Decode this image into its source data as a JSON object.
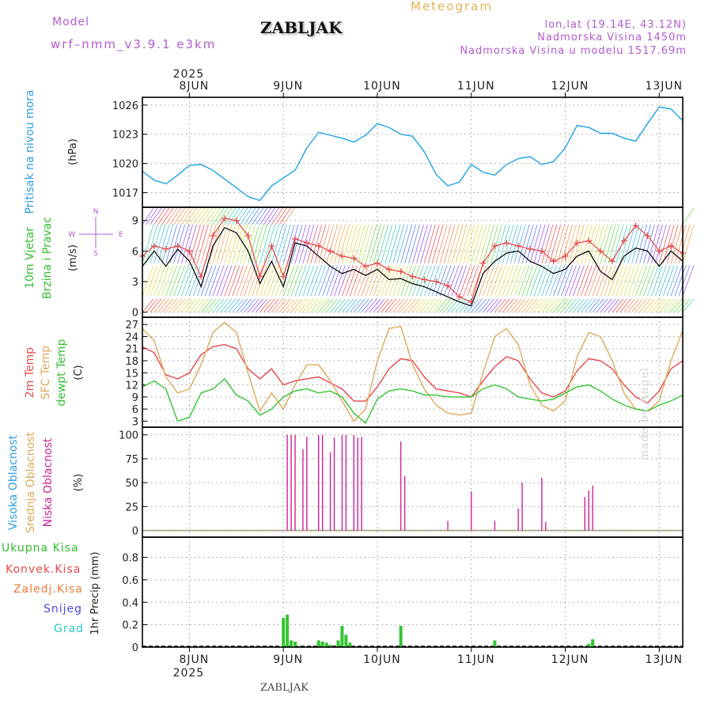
{
  "header": {
    "model_label": "Model",
    "model_value": "wrf–nmm_v3.9.1  e3km",
    "location_title": "ZABLJAK",
    "meteogram_label": "Meteogram",
    "coords": "lon,lat (19.14E, 43.12N)",
    "altitude": "Nadmorska Visina 1450m",
    "model_altitude": "Nadmorska Visina u modelu 1517.69m",
    "footer_location": "ZABLJAK",
    "watermark": "made by Angel"
  },
  "colors": {
    "pressure": "#1ea3e6",
    "wind_speed": "#000000",
    "gust": "#e8474a",
    "temp2m": "#e8474a",
    "sfc_temp": "#e0a85a",
    "dewpoint": "#33c433",
    "low_cloud": "#cc2299",
    "precip_bar": "#33c433",
    "grid": "#9a9a9a",
    "purple_text": "#b45ad2",
    "orange_text": "#e8b050"
  },
  "chart_data": {
    "type": "line",
    "x_axis": {
      "year_label": "2025",
      "day_ticks": [
        "8JUN",
        "9JUN",
        "10JUN",
        "11JUN",
        "12JUN",
        "13JUN"
      ],
      "range_hours": [
        -12,
        126
      ]
    },
    "panels": [
      {
        "id": "pressure",
        "ylabel_lines": [
          "Pritisak na nivou mora",
          "(hPa)"
        ],
        "yticks": [
          1017,
          1020,
          1023,
          1026
        ],
        "ylim": [
          1015.5,
          1026.8
        ],
        "series": [
          {
            "name": "Pritisak na nivou mora",
            "hours": [
              -12,
              -9,
              -6,
              -3,
              0,
              3,
              6,
              9,
              12,
              15,
              18,
              21,
              24,
              27,
              30,
              33,
              36,
              39,
              42,
              45,
              48,
              51,
              54,
              57,
              60,
              63,
              66,
              69,
              72,
              75,
              78,
              81,
              84,
              87,
              90,
              93,
              96,
              99,
              102,
              105,
              108,
              111,
              114,
              117,
              120,
              123,
              126
            ],
            "values": [
              1019.2,
              1018.3,
              1017.9,
              1018.8,
              1019.8,
              1019.9,
              1019.3,
              1018.4,
              1017.5,
              1016.6,
              1016.2,
              1017.7,
              1018.5,
              1019.3,
              1021.6,
              1023.2,
              1022.9,
              1022.6,
              1022.2,
              1022.9,
              1024.1,
              1023.7,
              1023.0,
              1022.8,
              1021.2,
              1018.9,
              1017.7,
              1018.1,
              1019.9,
              1019.1,
              1018.8,
              1019.9,
              1020.5,
              1020.7,
              1019.9,
              1020.2,
              1021.6,
              1023.9,
              1023.7,
              1023.1,
              1023.1,
              1022.6,
              1022.3,
              1024.1,
              1025.8,
              1025.6,
              1024.4
            ]
          }
        ]
      },
      {
        "id": "wind",
        "ylabel_lines": [
          "10m Vjetar",
          "Brzina i Pravac",
          "(m/s)"
        ],
        "direction_legend": "W <- | -> E  (N up / S down)",
        "yticks": [
          0,
          3,
          6,
          9
        ],
        "ylim": [
          -0.5,
          10.3
        ],
        "series": [
          {
            "name": "Brzina vjetra",
            "hours": [
              -12,
              -9,
              -6,
              -3,
              0,
              3,
              6,
              9,
              12,
              15,
              18,
              21,
              24,
              27,
              30,
              33,
              36,
              39,
              42,
              45,
              48,
              51,
              54,
              57,
              60,
              63,
              66,
              69,
              72,
              75,
              78,
              81,
              84,
              87,
              90,
              93,
              96,
              99,
              102,
              105,
              108,
              111,
              114,
              117,
              120,
              123,
              126
            ],
            "values": [
              4.5,
              6.0,
              4.5,
              6.2,
              5.0,
              2.5,
              6.5,
              8.3,
              7.8,
              6.0,
              2.8,
              5.0,
              2.5,
              6.8,
              6.5,
              5.5,
              4.5,
              3.8,
              4.2,
              3.6,
              4.2,
              3.2,
              3.3,
              2.8,
              2.5,
              2.0,
              1.5,
              1.0,
              0.6,
              3.8,
              5.0,
              5.8,
              6.0,
              5.0,
              4.5,
              3.8,
              4.2,
              5.5,
              6.0,
              4.0,
              3.2,
              5.5,
              6.3,
              6.0,
              4.5,
              6.0,
              5.0
            ]
          },
          {
            "name": "Udari vjetra",
            "hours": [
              -12,
              -9,
              -6,
              -3,
              0,
              3,
              6,
              9,
              12,
              15,
              18,
              21,
              24,
              27,
              30,
              33,
              36,
              39,
              42,
              45,
              48,
              51,
              54,
              57,
              60,
              63,
              66,
              69,
              72,
              75,
              78,
              81,
              84,
              87,
              90,
              93,
              96,
              99,
              102,
              105,
              108,
              111,
              114,
              117,
              120,
              123,
              126
            ],
            "values": [
              5.5,
              6.5,
              6.2,
              6.5,
              6.0,
              3.5,
              7.5,
              9.2,
              9.0,
              7.5,
              3.5,
              6.5,
              3.5,
              7.2,
              6.8,
              6.5,
              6.0,
              5.5,
              5.3,
              4.5,
              4.8,
              4.2,
              4.0,
              3.5,
              3.2,
              3.0,
              2.6,
              1.5,
              1.0,
              4.8,
              6.5,
              6.8,
              6.5,
              6.2,
              6.0,
              5.0,
              5.5,
              6.8,
              7.0,
              6.0,
              5.0,
              7.0,
              8.5,
              7.5,
              6.0,
              6.5,
              5.8
            ]
          }
        ]
      },
      {
        "id": "temperature",
        "ylabel_lines": [
          "2m Temp",
          "SFC Temp",
          "dewpt Temp",
          "(C)"
        ],
        "yticks": [
          3,
          6,
          9,
          12,
          15,
          18,
          21,
          24,
          27
        ],
        "ylim": [
          1.5,
          28.8
        ],
        "series": [
          {
            "name": "2m Temp",
            "hours": [
              -12,
              -9,
              -6,
              -3,
              0,
              3,
              6,
              9,
              12,
              15,
              18,
              21,
              24,
              27,
              30,
              33,
              36,
              39,
              42,
              45,
              48,
              51,
              54,
              57,
              60,
              63,
              66,
              69,
              72,
              75,
              78,
              81,
              84,
              87,
              90,
              93,
              96,
              99,
              102,
              105,
              108,
              111,
              114,
              117,
              120,
              123,
              126
            ],
            "values": [
              21.5,
              20.0,
              14.5,
              13.5,
              15.0,
              19.5,
              21.5,
              22.0,
              21.0,
              16.0,
              13.5,
              16.0,
              12.0,
              13.0,
              13.5,
              14.0,
              12.5,
              11.0,
              8.0,
              8.0,
              11.5,
              16.0,
              18.5,
              18.0,
              14.0,
              11.0,
              10.5,
              10.0,
              9.0,
              13.0,
              16.5,
              19.0,
              18.0,
              13.5,
              10.0,
              9.0,
              10.5,
              15.5,
              18.5,
              18.0,
              16.0,
              12.0,
              9.0,
              7.5,
              10.5,
              16.0,
              18.0
            ]
          },
          {
            "name": "SFC Temp",
            "hours": [
              -12,
              -9,
              -6,
              -3,
              0,
              3,
              6,
              9,
              12,
              15,
              18,
              21,
              24,
              27,
              30,
              33,
              36,
              39,
              42,
              45,
              48,
              51,
              54,
              57,
              60,
              63,
              66,
              69,
              72,
              75,
              78,
              81,
              84,
              87,
              90,
              93,
              96,
              99,
              102,
              105,
              108,
              111,
              114,
              117,
              120,
              123,
              126
            ],
            "values": [
              26.0,
              23.0,
              14.0,
              10.0,
              11.0,
              17.0,
              25.0,
              27.5,
              25.0,
              15.0,
              5.5,
              10.0,
              6.0,
              12.0,
              17.0,
              17.0,
              13.0,
              8.0,
              3.0,
              6.0,
              18.0,
              26.0,
              26.5,
              17.0,
              11.0,
              7.0,
              5.0,
              4.5,
              5.0,
              15.0,
              24.0,
              26.0,
              22.0,
              12.0,
              7.0,
              5.5,
              8.0,
              19.0,
              25.0,
              24.0,
              18.0,
              10.0,
              6.0,
              5.5,
              8.0,
              18.0,
              25.5
            ]
          },
          {
            "name": "dewpt Temp",
            "hours": [
              -12,
              -9,
              -6,
              -3,
              0,
              3,
              6,
              9,
              12,
              15,
              18,
              21,
              24,
              27,
              30,
              33,
              36,
              39,
              42,
              45,
              48,
              51,
              54,
              57,
              60,
              63,
              66,
              69,
              72,
              75,
              78,
              81,
              84,
              87,
              90,
              93,
              96,
              99,
              102,
              105,
              108,
              111,
              114,
              117,
              120,
              123,
              126
            ],
            "values": [
              11.5,
              13.0,
              11.0,
              3.0,
              4.0,
              10.0,
              11.0,
              13.5,
              9.5,
              8.0,
              4.5,
              6.0,
              9.0,
              10.5,
              11.0,
              10.0,
              10.5,
              9.0,
              5.0,
              2.5,
              8.5,
              10.5,
              11.0,
              10.5,
              9.5,
              9.5,
              9.0,
              9.0,
              9.0,
              11.0,
              12.0,
              11.0,
              9.0,
              8.5,
              8.0,
              8.5,
              10.0,
              11.5,
              12.0,
              10.5,
              8.5,
              7.0,
              6.0,
              5.5,
              7.0,
              8.0,
              9.5
            ]
          }
        ]
      },
      {
        "id": "cloud",
        "ylabel_lines": [
          "Visoka Oblacnost",
          "Srednja Oblacnost",
          "Niska Oblacnost",
          "(%)"
        ],
        "yticks": [
          0,
          25,
          50,
          75,
          100
        ],
        "ylim": [
          -7,
          108
        ],
        "series": [
          {
            "name": "Niska Oblacnost",
            "hours": [
              25,
              26,
              27,
              29,
              30,
              33,
              34,
              36,
              37,
              39,
              40,
              42,
              43,
              44,
              54,
              55,
              66,
              72,
              78,
              84,
              85,
              90,
              91,
              101,
              102,
              103
            ],
            "values": [
              100,
              100,
              100,
              85,
              98,
              100,
              100,
              82,
              97,
              100,
              100,
              100,
              97,
              98,
              93,
              57,
              10,
              41,
              10,
              23,
              50,
              55,
              9,
              35,
              42,
              47
            ]
          }
        ]
      },
      {
        "id": "precip",
        "ylabel_lines": [
          "1hr Precip (mm)"
        ],
        "legend": [
          "Ukupna Kisa",
          "Konvek.Kisa",
          "Zaledj.Kisa",
          "Snijeg",
          "Grad"
        ],
        "yticks": [
          0,
          0.2,
          0.4,
          0.6,
          0.8
        ],
        "ylim": [
          0,
          0.98
        ],
        "series": [
          {
            "name": "Ukupna Kisa",
            "hours": [
              24,
              25,
              26,
              27,
              28,
              33,
              34,
              35,
              36,
              38,
              39,
              40,
              41,
              54,
              78,
              102,
              103
            ],
            "values": [
              0.26,
              0.29,
              0.06,
              0.05,
              0.01,
              0.06,
              0.05,
              0.04,
              0.02,
              0.06,
              0.19,
              0.11,
              0.04,
              0.19,
              0.06,
              0.03,
              0.07
            ]
          }
        ]
      }
    ]
  }
}
